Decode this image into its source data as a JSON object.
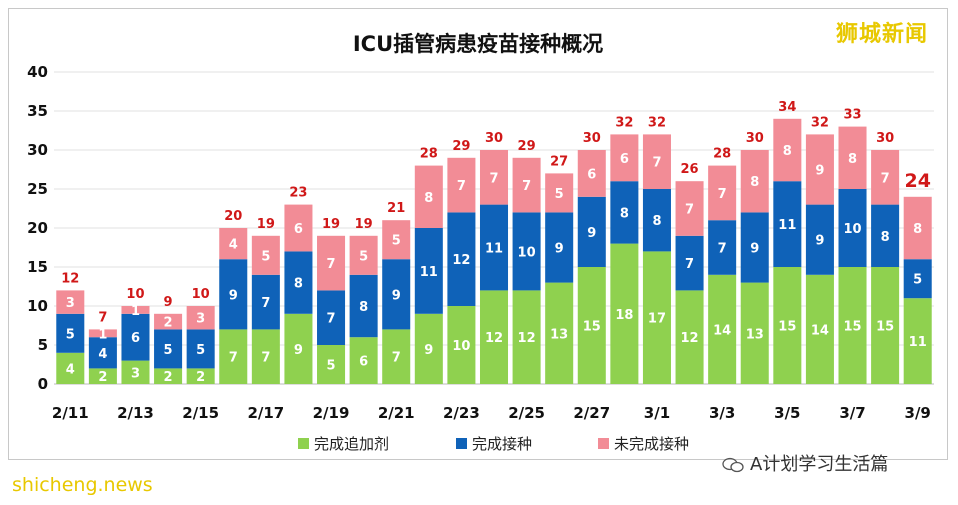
{
  "watermarks": {
    "top": "狮城新闻",
    "bottom": "shicheng.news",
    "wechat": "A计划学习生活篇"
  },
  "colors": {
    "booster": "#8fd14f",
    "completed": "#0f62b8",
    "incomplete": "#f28c96",
    "total_label": "#d01818"
  },
  "chart_data": {
    "type": "bar",
    "stacked": true,
    "title": "ICU插管病患疫苗接种概况",
    "ylim": [
      0,
      40
    ],
    "yticks": [
      0,
      5,
      10,
      15,
      20,
      25,
      30,
      35,
      40
    ],
    "categories": [
      "2/11",
      "2/12",
      "2/13",
      "2/14",
      "2/15",
      "2/16",
      "2/17",
      "2/18",
      "2/19",
      "2/20",
      "2/21",
      "2/22",
      "2/23",
      "2/24",
      "2/25",
      "2/26",
      "2/27",
      "2/28",
      "3/1",
      "3/2",
      "3/3",
      "3/4",
      "3/5",
      "3/6",
      "3/7",
      "3/8",
      "3/9"
    ],
    "xtick_labels": [
      "2/11",
      "",
      "2/13",
      "",
      "2/15",
      "",
      "2/17",
      "",
      "2/19",
      "",
      "2/21",
      "",
      "2/23",
      "",
      "2/25",
      "",
      "2/27",
      "",
      "3/1",
      "",
      "3/3",
      "",
      "3/5",
      "",
      "3/7",
      "",
      "3/9"
    ],
    "series": [
      {
        "name": "完成追加剂",
        "values": [
          4,
          2,
          3,
          2,
          2,
          7,
          7,
          9,
          5,
          6,
          7,
          9,
          10,
          12,
          12,
          13,
          15,
          18,
          17,
          12,
          14,
          13,
          15,
          14,
          15,
          15,
          11
        ]
      },
      {
        "name": "完成接种",
        "values": [
          5,
          4,
          6,
          5,
          5,
          9,
          7,
          8,
          7,
          8,
          9,
          11,
          12,
          11,
          10,
          9,
          9,
          8,
          8,
          7,
          7,
          9,
          11,
          9,
          10,
          8,
          5
        ]
      },
      {
        "name": "未完成接种",
        "values": [
          3,
          1,
          1,
          2,
          3,
          4,
          5,
          6,
          7,
          5,
          5,
          8,
          7,
          7,
          7,
          5,
          6,
          6,
          7,
          7,
          7,
          8,
          8,
          9,
          8,
          7,
          8
        ]
      }
    ],
    "totals": [
      12,
      7,
      10,
      9,
      10,
      20,
      19,
      23,
      19,
      19,
      21,
      28,
      29,
      30,
      29,
      27,
      30,
      32,
      32,
      26,
      28,
      30,
      34,
      32,
      33,
      30,
      24
    ],
    "legend_position": "bottom"
  }
}
